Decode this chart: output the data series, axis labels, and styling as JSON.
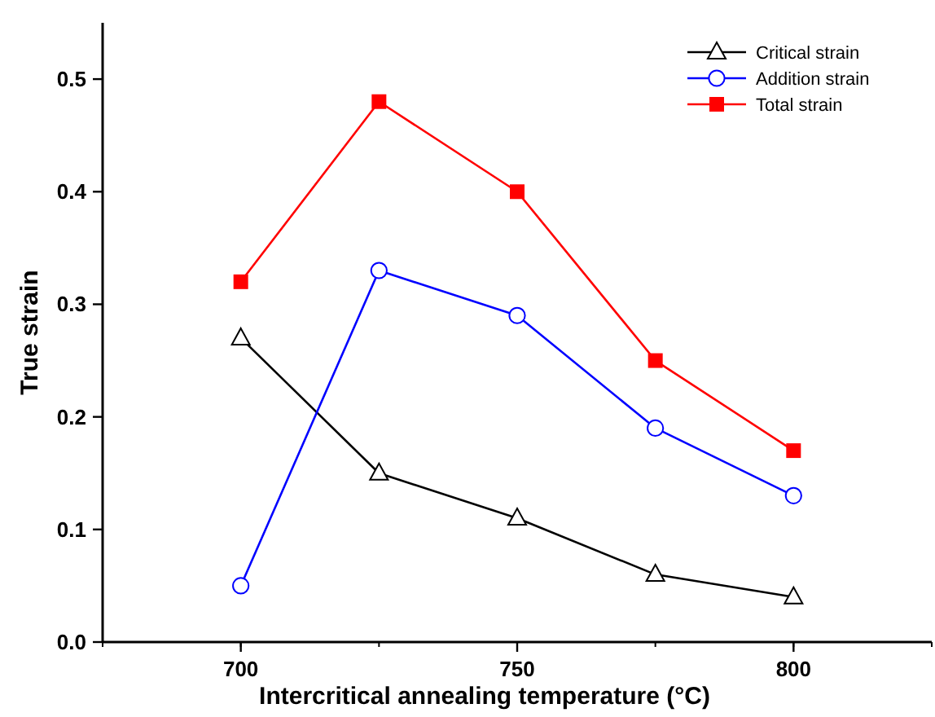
{
  "chart_data": {
    "type": "line",
    "xlabel": "Intercritical annealing temperature (°C)",
    "ylabel": "True strain",
    "x": [
      700,
      725,
      750,
      775,
      800
    ],
    "xlim": [
      675,
      825
    ],
    "xticks": [
      700,
      750,
      800
    ],
    "ylim": [
      0,
      0.55
    ],
    "yticks": [
      {
        "value": 0,
        "label": "0.0"
      },
      {
        "value": 0.1,
        "label": "0.1"
      },
      {
        "value": 0.2,
        "label": "0.2"
      },
      {
        "value": 0.3,
        "label": "0.3"
      },
      {
        "value": 0.4,
        "label": "0.4"
      },
      {
        "value": 0.5,
        "label": "0.5"
      }
    ],
    "legend": "top right",
    "grid": false,
    "line_style": "solid",
    "series": [
      {
        "name": "Critical strain",
        "color": "#000000",
        "marker": "triangle",
        "values": [
          0.27,
          0.15,
          0.11,
          0.06,
          0.04
        ]
      },
      {
        "name": "Addition strain",
        "color": "#0000ff",
        "marker": "circle",
        "values": [
          0.05,
          0.33,
          0.29,
          0.19,
          0.13
        ]
      },
      {
        "name": "Total strain",
        "color": "#ff0000",
        "marker": "square",
        "values": [
          0.32,
          0.48,
          0.4,
          0.25,
          0.17
        ]
      }
    ]
  }
}
